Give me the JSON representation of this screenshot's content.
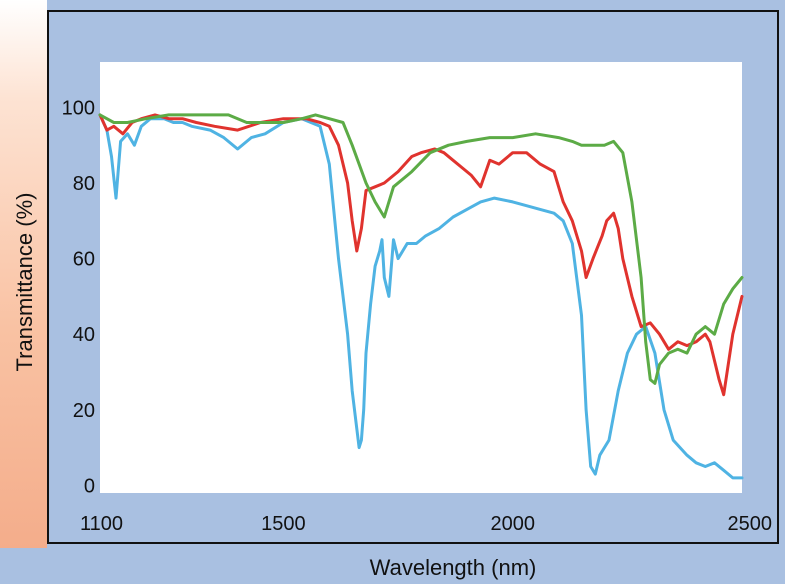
{
  "chart_data": {
    "type": "line",
    "xlabel": "Wavelength (nm)",
    "ylabel": "Transmittance (%)",
    "xlim": [
      1100,
      2500
    ],
    "ylim": [
      -2,
      112
    ],
    "x_ticks": [
      1100,
      1500,
      2000,
      2500
    ],
    "y_ticks": [
      0,
      20,
      40,
      60,
      80,
      100
    ],
    "grid": false,
    "legend": "none",
    "series": [
      {
        "color": "#4fb3e3",
        "x": [
          1100,
          1115,
          1125,
          1135,
          1145,
          1160,
          1175,
          1190,
          1210,
          1240,
          1260,
          1280,
          1300,
          1340,
          1370,
          1400,
          1430,
          1460,
          1500,
          1540,
          1560,
          1580,
          1600,
          1620,
          1640,
          1650,
          1660,
          1665,
          1670,
          1675,
          1680,
          1690,
          1700,
          1710,
          1715,
          1720,
          1730,
          1740,
          1750,
          1760,
          1770,
          1790,
          1810,
          1840,
          1870,
          1900,
          1930,
          1960,
          2000,
          2030,
          2060,
          2090,
          2110,
          2130,
          2150,
          2160,
          2170,
          2180,
          2190,
          2200,
          2210,
          2230,
          2250,
          2270,
          2290,
          2310,
          2330,
          2350,
          2380,
          2400,
          2420,
          2440,
          2460,
          2480,
          2500
        ],
        "y": [
          98,
          94,
          87,
          76,
          91,
          93,
          90,
          95,
          97,
          97,
          96,
          96,
          95,
          94,
          92,
          89,
          92,
          93,
          96,
          97,
          96,
          95,
          85,
          60,
          40,
          25,
          15,
          10,
          12,
          20,
          35,
          48,
          58,
          62,
          65,
          55,
          50,
          65,
          60,
          62,
          64,
          64,
          66,
          68,
          71,
          73,
          75,
          76,
          75,
          74,
          73,
          72,
          70,
          64,
          45,
          20,
          5,
          3,
          8,
          10,
          12,
          25,
          35,
          40,
          42,
          35,
          20,
          12,
          8,
          6,
          5,
          6,
          4,
          2,
          2
        ]
      },
      {
        "color": "#e0332e",
        "x": [
          1100,
          1115,
          1130,
          1150,
          1170,
          1190,
          1220,
          1250,
          1280,
          1310,
          1350,
          1400,
          1450,
          1500,
          1550,
          1580,
          1600,
          1620,
          1640,
          1650,
          1660,
          1670,
          1680,
          1700,
          1720,
          1750,
          1780,
          1800,
          1830,
          1850,
          1870,
          1890,
          1910,
          1930,
          1950,
          1970,
          2000,
          2030,
          2060,
          2090,
          2110,
          2130,
          2150,
          2160,
          2175,
          2185,
          2195,
          2205,
          2220,
          2230,
          2240,
          2260,
          2280,
          2300,
          2320,
          2340,
          2360,
          2380,
          2400,
          2420,
          2430,
          2440,
          2450,
          2460,
          2480,
          2500
        ],
        "y": [
          98,
          94,
          95,
          93,
          96,
          97,
          98,
          97,
          97,
          96,
          95,
          94,
          96,
          97,
          97,
          96,
          95,
          90,
          80,
          70,
          62,
          68,
          78,
          79,
          80,
          83,
          87,
          88,
          89,
          88,
          86,
          84,
          82,
          79,
          86,
          85,
          88,
          88,
          85,
          83,
          75,
          70,
          62,
          55,
          60,
          63,
          66,
          70,
          72,
          68,
          60,
          50,
          42,
          43,
          40,
          36,
          38,
          37,
          38,
          40,
          38,
          33,
          28,
          24,
          40,
          50
        ]
      },
      {
        "color": "#5cab46",
        "x": [
          1100,
          1130,
          1160,
          1200,
          1250,
          1300,
          1340,
          1380,
          1420,
          1460,
          1500,
          1540,
          1570,
          1600,
          1630,
          1650,
          1680,
          1700,
          1720,
          1740,
          1780,
          1820,
          1860,
          1900,
          1950,
          2000,
          2050,
          2100,
          2130,
          2150,
          2180,
          2200,
          2220,
          2240,
          2260,
          2280,
          2290,
          2300,
          2310,
          2320,
          2340,
          2360,
          2380,
          2400,
          2420,
          2440,
          2460,
          2480,
          2500
        ],
        "y": [
          98,
          96,
          96,
          97,
          98,
          98,
          98,
          98,
          96,
          96,
          96,
          97,
          98,
          97,
          96,
          90,
          80,
          75,
          71,
          79,
          83,
          88,
          90,
          91,
          92,
          92,
          93,
          92,
          91,
          90,
          90,
          90,
          91,
          88,
          75,
          55,
          38,
          28,
          27,
          32,
          35,
          36,
          35,
          40,
          42,
          40,
          48,
          52,
          55
        ]
      }
    ]
  }
}
